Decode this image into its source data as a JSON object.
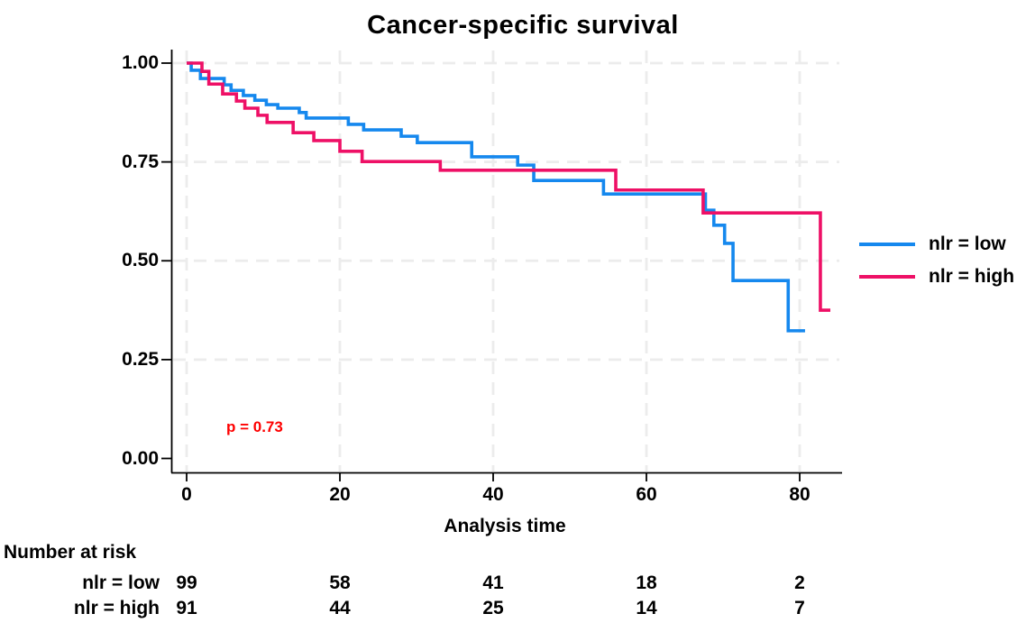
{
  "chart_data": {
    "type": "line",
    "subtype": "kaplan-meier-step",
    "title": "Cancer-specific survival",
    "xlabel": "Analysis time",
    "ylabel": "",
    "xlim": [
      -2,
      85
    ],
    "ylim": [
      0.0,
      1.0
    ],
    "xticks": [
      0,
      20,
      40,
      60,
      80
    ],
    "ytick_labels": [
      "0.00",
      "0.25",
      "0.50",
      "0.75",
      "1.00"
    ],
    "ytick_values": [
      0.0,
      0.25,
      0.5,
      0.75,
      1.0
    ],
    "grid": "dashed light-gray, vertical at xticks, horizontal at 0.25-1.00",
    "legend_position": "right-outside-middle",
    "annotation": {
      "text": "p = 0.73",
      "color": "#fe0000"
    },
    "colors": {
      "axis": "#000000",
      "gridline": "#ececec",
      "background": "#ffffff",
      "series_low": "#1588ee",
      "series_high": "#ee1066"
    },
    "series": [
      {
        "name": "nlr = low",
        "color": "#1588ee",
        "points": [
          [
            0,
            1.0
          ],
          [
            0.6,
            0.982
          ],
          [
            1.8,
            0.961
          ],
          [
            4.9,
            0.945
          ],
          [
            5.8,
            0.931
          ],
          [
            7.4,
            0.918
          ],
          [
            8.9,
            0.906
          ],
          [
            10.4,
            0.895
          ],
          [
            11.9,
            0.886
          ],
          [
            14.7,
            0.875
          ],
          [
            15.6,
            0.861
          ],
          [
            21.1,
            0.845
          ],
          [
            23.1,
            0.831
          ],
          [
            28.0,
            0.815
          ],
          [
            30.1,
            0.799
          ],
          [
            37.2,
            0.763
          ],
          [
            43.2,
            0.742
          ],
          [
            45.3,
            0.703
          ],
          [
            54.4,
            0.669
          ],
          [
            67.7,
            0.628
          ],
          [
            68.8,
            0.59
          ],
          [
            70.2,
            0.544
          ],
          [
            71.3,
            0.45
          ],
          [
            78.5,
            0.323
          ],
          [
            80.7,
            0.323
          ]
        ]
      },
      {
        "name": "nlr = high",
        "color": "#ee1066",
        "points": [
          [
            0,
            1.0
          ],
          [
            2.0,
            0.979
          ],
          [
            2.9,
            0.947
          ],
          [
            4.7,
            0.922
          ],
          [
            6.5,
            0.904
          ],
          [
            7.6,
            0.886
          ],
          [
            9.3,
            0.868
          ],
          [
            10.5,
            0.85
          ],
          [
            13.9,
            0.824
          ],
          [
            16.6,
            0.804
          ],
          [
            20.0,
            0.777
          ],
          [
            22.9,
            0.751
          ],
          [
            33.1,
            0.729
          ],
          [
            56.0,
            0.679
          ],
          [
            67.4,
            0.621
          ],
          [
            82.7,
            0.375
          ],
          [
            84.0,
            0.375
          ]
        ]
      }
    ],
    "risk_table": {
      "header": "Number at risk",
      "time_points": [
        0,
        20,
        40,
        60,
        80
      ],
      "rows": [
        {
          "label": "nlr = low",
          "values": [
            "99",
            "58",
            "41",
            "18",
            "2"
          ]
        },
        {
          "label": "nlr = high",
          "values": [
            "91",
            "44",
            "25",
            "14",
            "7"
          ]
        }
      ]
    }
  }
}
